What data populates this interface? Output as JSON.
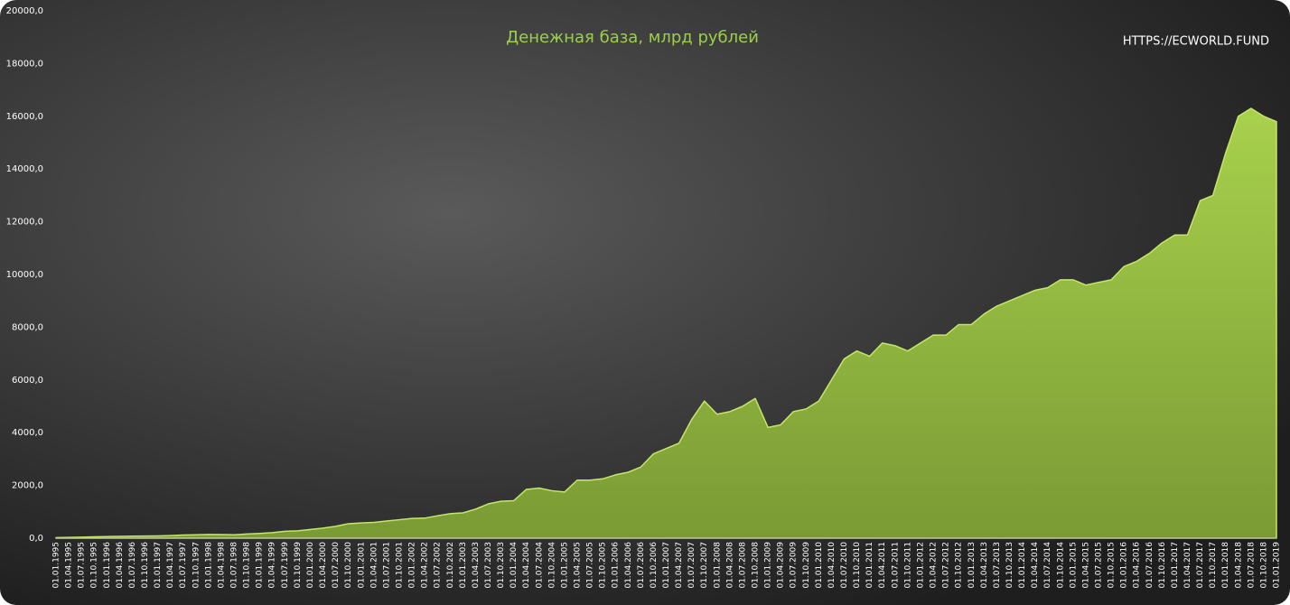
{
  "chart_data": {
    "type": "area",
    "title": "Денежная база, млрд рублей",
    "source": "HTTPS://ECWORLD.FUND",
    "color": "#8fb33a",
    "categories": [
      "01.01.1995",
      "01.04.1995",
      "01.07.1995",
      "01.10.1995",
      "01.01.1996",
      "01.04.1996",
      "01.07.1996",
      "01.10.1996",
      "01.01.1997",
      "01.04.1997",
      "01.07.1997",
      "01.10.1997",
      "01.01.1998",
      "01.04.1998",
      "01.07.1998",
      "01.10.1998",
      "01.01.1999",
      "01.04.1999",
      "01.07.1999",
      "01.10.1999",
      "01.01.2000",
      "01.04.2000",
      "01.07.2000",
      "01.10.2000",
      "01.01.2001",
      "01.04.2001",
      "01.07.2001",
      "01.10.2001",
      "01.01.2002",
      "01.04.2002",
      "01.07.2002",
      "01.10.2002",
      "01.01.2003",
      "01.04.2003",
      "01.07.2003",
      "01.10.2003",
      "01.01.2004",
      "01.04.2004",
      "01.07.2004",
      "01.10.2004",
      "01.01.2005",
      "01.04.2005",
      "01.07.2005",
      "01.10.2005",
      "01.01.2006",
      "01.04.2006",
      "01.07.2006",
      "01.10.2006",
      "01.01.2007",
      "01.04.2007",
      "01.07.2007",
      "01.10.2007",
      "01.01.2008",
      "01.04.2008",
      "01.07.2008",
      "01.10.2008",
      "01.01.2009",
      "01.04.2009",
      "01.07.2009",
      "01.10.2009",
      "01.01.2010",
      "01.04.2010",
      "01.07.2010",
      "01.10.2010",
      "01.01.2011",
      "01.04.2011",
      "01.07.2011",
      "01.10.2011",
      "01.01.2012",
      "01.04.2012",
      "01.07.2012",
      "01.10.2012",
      "01.01.2013",
      "01.04.2013",
      "01.07.2013",
      "01.10.2013",
      "01.01.2014",
      "01.04.2014",
      "01.07.2014",
      "01.10.2014",
      "01.01.2015",
      "01.04.2015",
      "01.07.2015",
      "01.10.2015",
      "01.01.2016",
      "01.04.2016",
      "01.07.2016",
      "01.10.2016",
      "01.01.2017",
      "01.04.2017",
      "01.07.2017",
      "01.10.2017",
      "01.01.2018",
      "01.04.2018",
      "01.07.2018",
      "01.10.2018",
      "01.01.2019"
    ],
    "values": [
      20,
      30,
      40,
      50,
      60,
      70,
      75,
      80,
      85,
      100,
      120,
      130,
      140,
      135,
      130,
      160,
      180,
      210,
      260,
      280,
      330,
      380,
      450,
      550,
      580,
      600,
      650,
      700,
      750,
      760,
      850,
      930,
      960,
      1100,
      1300,
      1400,
      1420,
      1850,
      1900,
      1800,
      1750,
      2200,
      2200,
      2250,
      2400,
      2500,
      2700,
      3200,
      3400,
      3600,
      4500,
      5200,
      4700,
      4800,
      5000,
      5300,
      4200,
      4300,
      4800,
      4900,
      5200,
      6000,
      6800,
      7100,
      6900,
      7400,
      7300,
      7100,
      7400,
      7700,
      7700,
      8100,
      8100,
      8500,
      8800,
      9000,
      9200,
      9400,
      9500,
      9800,
      9800,
      9600,
      9700,
      9800,
      10300,
      10500,
      10800,
      11200,
      11500,
      11500,
      12800,
      13000,
      14600,
      16000,
      16300,
      16000,
      15800
    ],
    "ylim": [
      0,
      20000
    ],
    "yticks": [
      {
        "value": 0,
        "label": "0,0"
      },
      {
        "value": 2000,
        "label": "2000,0"
      },
      {
        "value": 4000,
        "label": "4000,0"
      },
      {
        "value": 6000,
        "label": "6000,0"
      },
      {
        "value": 8000,
        "label": "8000,0"
      },
      {
        "value": 10000,
        "label": "10000,0"
      },
      {
        "value": 12000,
        "label": "12000,0"
      },
      {
        "value": 14000,
        "label": "14000,0"
      },
      {
        "value": 16000,
        "label": "16000,0"
      },
      {
        "value": 18000,
        "label": "18000,0"
      },
      {
        "value": 20000,
        "label": "20000,0"
      }
    ]
  }
}
